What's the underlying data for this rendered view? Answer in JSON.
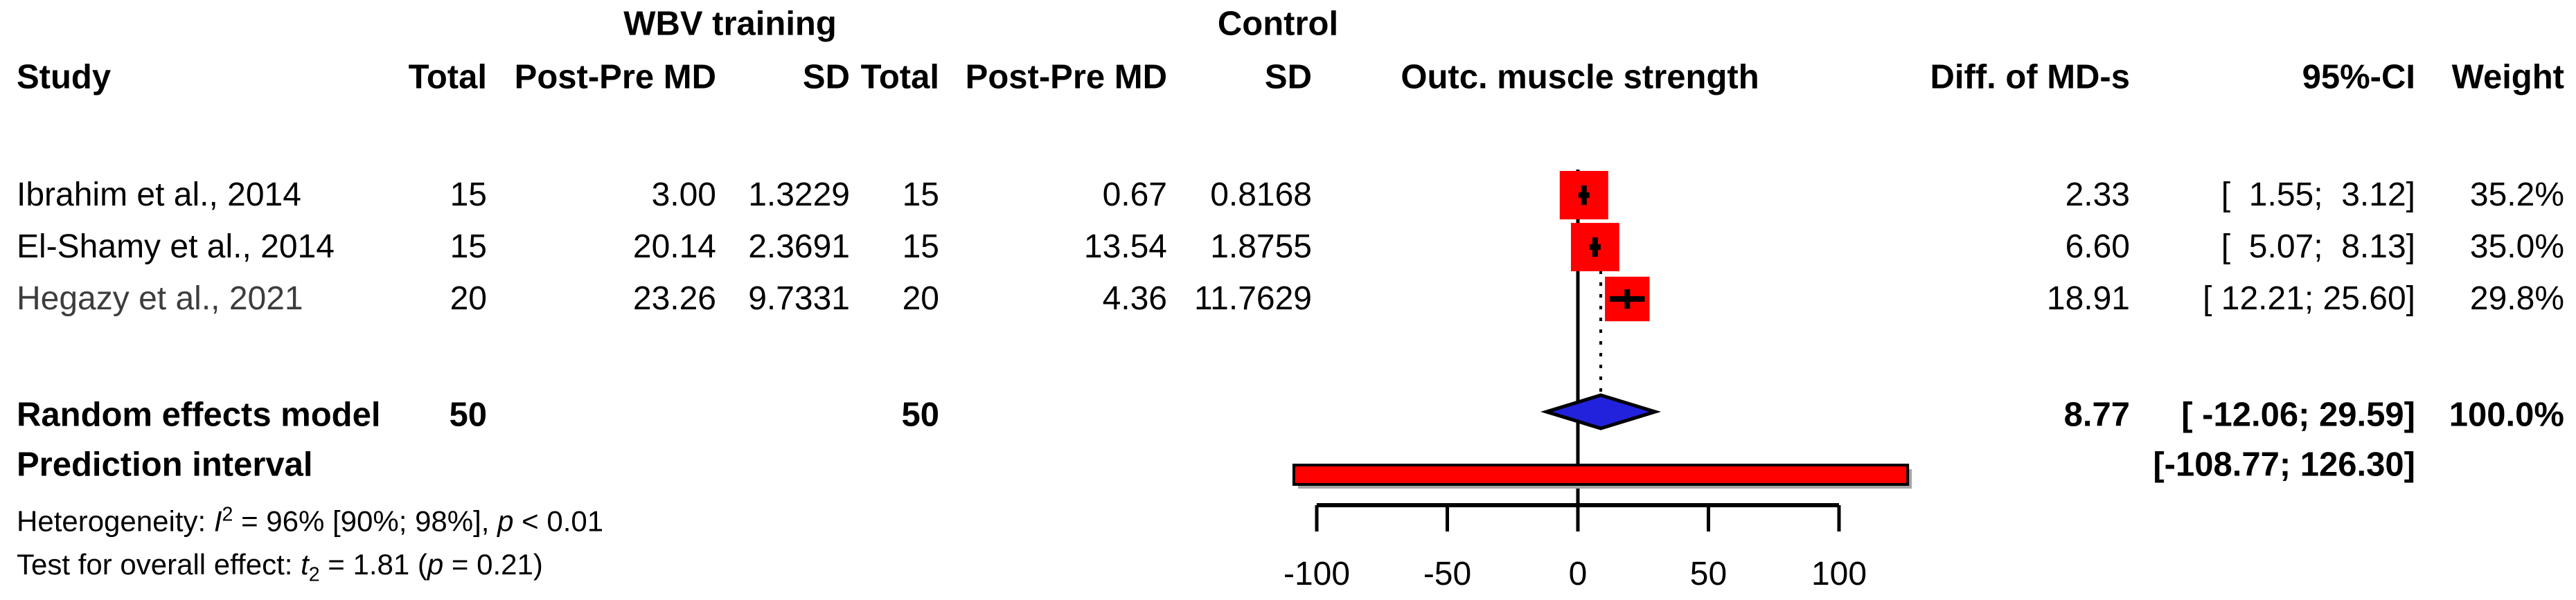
{
  "chart_data": {
    "type": "forest",
    "group_headers": {
      "treatment": "WBV training",
      "control": "Control"
    },
    "column_headers": {
      "study": "Study",
      "treatment_total": "Total",
      "treatment_md": "Post-Pre MD",
      "treatment_sd": "SD",
      "control_total": "Total",
      "control_md": "Post-Pre MD",
      "control_sd": "SD",
      "outcome": "Outc. muscle strength",
      "diff": "Diff. of MD-s",
      "ci": "95%-CI",
      "weight": "Weight"
    },
    "studies": [
      {
        "label": "Ibrahim et al., 2014",
        "treatment": {
          "total": "15",
          "md": "3.00",
          "sd": "1.3229"
        },
        "control": {
          "total": "15",
          "md": "0.67",
          "sd": "0.8168"
        },
        "effect": 2.33,
        "ci_lower": 1.55,
        "ci_upper": 3.12,
        "effect_label": "2.33",
        "ci_label": "[  1.55;  3.12]",
        "weight_pct": 35.2,
        "weight_label": "35.2%"
      },
      {
        "label": "El-Shamy et al., 2014",
        "treatment": {
          "total": "15",
          "md": "20.14",
          "sd": "2.3691"
        },
        "control": {
          "total": "15",
          "md": "13.54",
          "sd": "1.8755"
        },
        "effect": 6.6,
        "ci_lower": 5.07,
        "ci_upper": 8.13,
        "effect_label": "6.60",
        "ci_label": "[  5.07;  8.13]",
        "weight_pct": 35.0,
        "weight_label": "35.0%"
      },
      {
        "label": "Hegazy et al., 2021",
        "treatment": {
          "total": "20",
          "md": "23.26",
          "sd": "9.7331"
        },
        "control": {
          "total": "20",
          "md": "4.36",
          "sd": "11.7629"
        },
        "effect": 18.91,
        "ci_lower": 12.21,
        "ci_upper": 25.6,
        "effect_label": "18.91",
        "ci_label": "[ 12.21; 25.60]",
        "weight_pct": 29.8,
        "weight_label": "29.8%"
      }
    ],
    "summary": {
      "label": "Random effects model",
      "treatment_total": "50",
      "control_total": "50",
      "effect": 8.77,
      "ci_lower": -12.06,
      "ci_upper": 29.59,
      "effect_label": "8.77",
      "ci_label": "[ -12.06; 29.59]",
      "weight_label": "100.0%"
    },
    "prediction": {
      "label": "Prediction interval",
      "lower": -108.77,
      "upper": 126.3,
      "ci_label": "[-108.77; 126.30]"
    },
    "heterogeneity": {
      "prefix": "Heterogeneity: ",
      "stat": "I",
      "sup": "2",
      "mid": " = 96% [90%; 98%], ",
      "p": "p",
      "tail": " < 0.01"
    },
    "overall_test": {
      "prefix": "Test for overall effect: ",
      "stat": "t",
      "sub": "2",
      "mid": " = 1.81 (",
      "p": "p",
      "tail": " = 0.21)"
    },
    "axis": {
      "ticks": [
        -100,
        -50,
        0,
        50,
        100
      ],
      "tick_labels": [
        "-100",
        "-50",
        "0",
        "50",
        "100"
      ],
      "zero_line": 0,
      "pooled_line": 8.77
    },
    "colors": {
      "square": "#ff0000",
      "prediction_bar": "#ff0000",
      "diamond": "#2222dd",
      "outline": "#000000",
      "shadow": "#a6a6a6"
    }
  }
}
